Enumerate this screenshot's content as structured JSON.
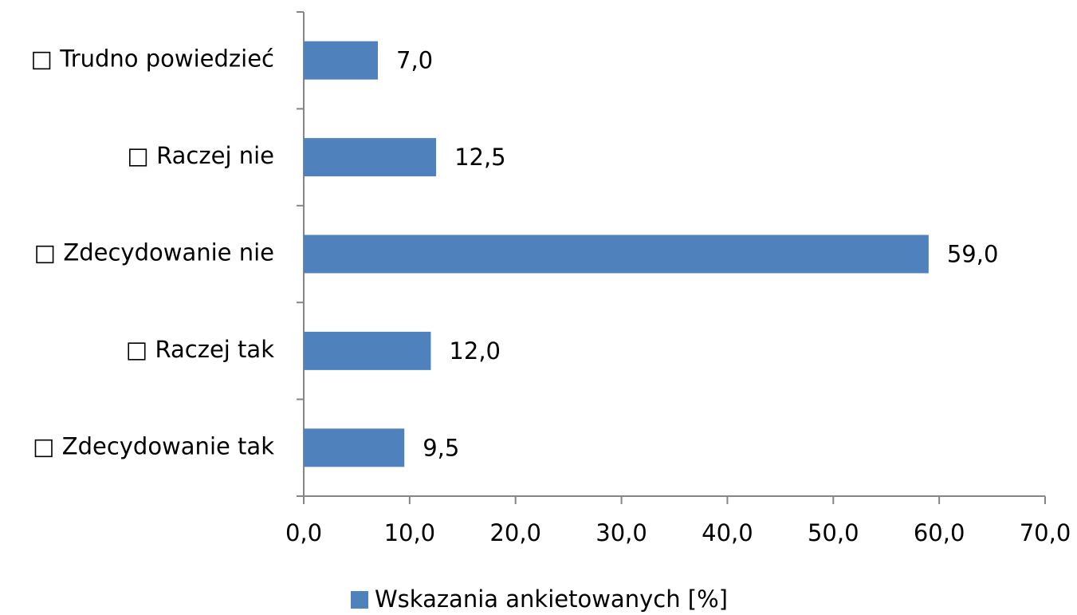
{
  "chart_data": {
    "type": "bar",
    "orientation": "horizontal",
    "categories": [
      "□ Trudno powiedzieć",
      "□ Raczej nie",
      "□ Zdecydowanie nie",
      "□ Raczej tak",
      "□ Zdecydowanie tak"
    ],
    "series": [
      {
        "name": "Wskazania ankietowanych [%]",
        "color": "#4f81bd",
        "values": [
          7.0,
          12.5,
          59.0,
          12.0,
          9.5
        ],
        "value_labels": [
          "7,0",
          "12,5",
          "59,0",
          "12,0",
          "9,5"
        ]
      }
    ],
    "xlim": [
      0,
      70
    ],
    "xticks": [
      {
        "value": 0,
        "label": "0,0"
      },
      {
        "value": 10,
        "label": "10,0"
      },
      {
        "value": 20,
        "label": "20,0"
      },
      {
        "value": 30,
        "label": "30,0"
      },
      {
        "value": 40,
        "label": "40,0"
      },
      {
        "value": 50,
        "label": "50,0"
      },
      {
        "value": 60,
        "label": "60,0"
      },
      {
        "value": 70,
        "label": "70,0"
      }
    ],
    "legend": "bottom"
  }
}
